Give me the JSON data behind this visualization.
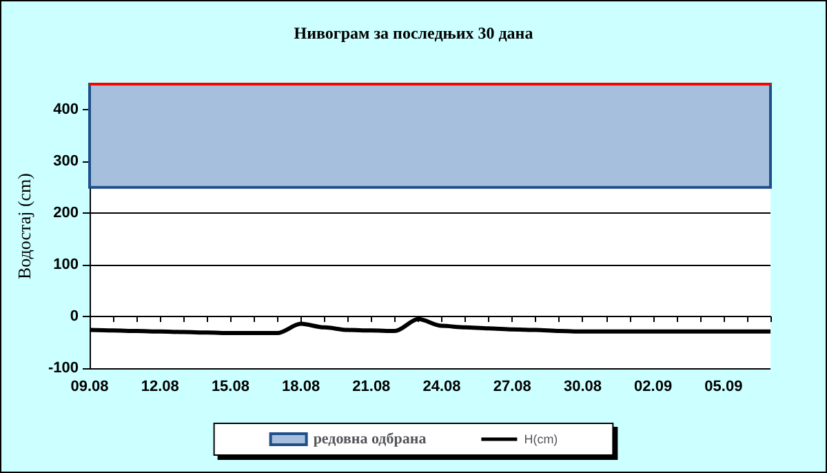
{
  "chart_data": {
    "type": "line",
    "title": "Нивограм за последњих 30 дана",
    "ylabel": "Водостај (cm)",
    "categories": [
      "09.08",
      null,
      null,
      "12.08",
      null,
      null,
      "15.08",
      null,
      null,
      "18.08",
      null,
      null,
      "21.08",
      null,
      null,
      "24.08",
      null,
      null,
      "27.08",
      null,
      null,
      "30.08",
      null,
      null,
      "02.09",
      null,
      null,
      "05.09",
      null,
      null
    ],
    "series": [
      {
        "name": "H(cm)",
        "color": "#000000",
        "values": [
          -26,
          -27,
          -28,
          -29,
          -30,
          -31,
          -32,
          -32,
          -32,
          -14,
          -21,
          -26,
          -27,
          -28,
          -5,
          -18,
          -21,
          -23,
          -25,
          -26,
          -28,
          -29,
          -29,
          -29,
          -29,
          -29,
          -29,
          -29,
          -29,
          -29
        ]
      }
    ],
    "bands": [
      {
        "axis": "y",
        "from": 250,
        "to": 450,
        "label": "редовна одбрана",
        "color": "#a6bfdd"
      }
    ],
    "ref_lines": [
      {
        "axis": "y",
        "value": 450,
        "color": "#ff0000"
      }
    ],
    "ylim": [
      -100,
      450
    ],
    "yticks": [
      -100,
      0,
      100,
      200,
      300,
      400
    ],
    "grid": "y",
    "legend": "bottom",
    "marker": "none",
    "line_style": "solid"
  }
}
